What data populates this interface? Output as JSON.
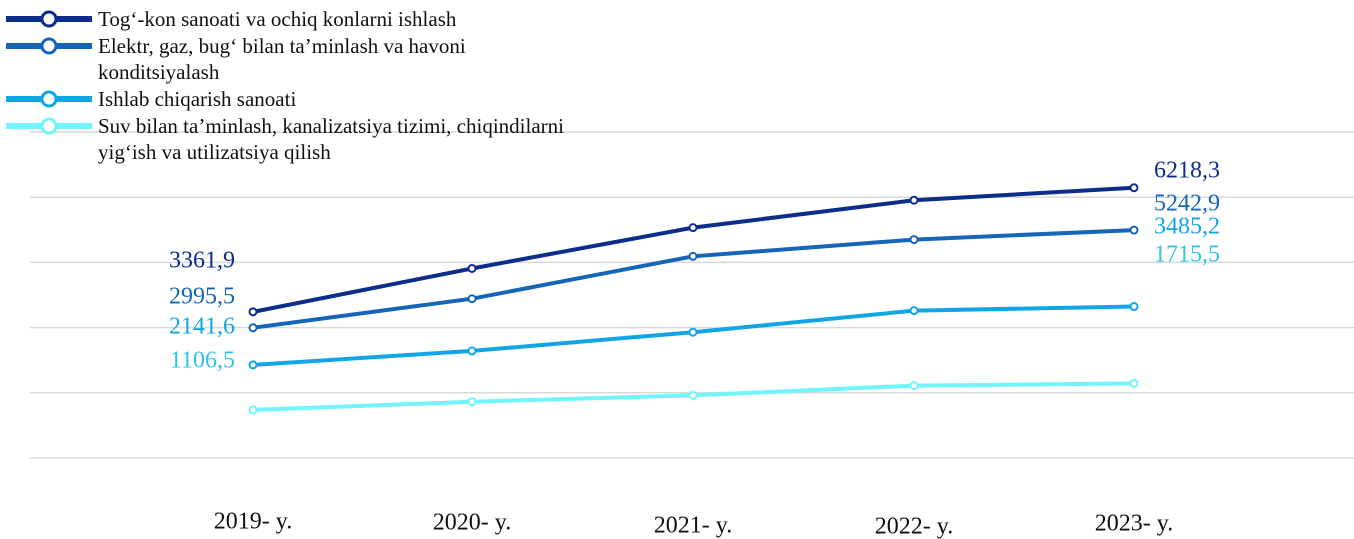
{
  "chart_data": {
    "type": "line",
    "categories": [
      "2019- y.",
      "2020- y.",
      "2021- y.",
      "2022- y.",
      "2023- y."
    ],
    "ylim": [
      0,
      7500
    ],
    "grid": true,
    "legend": "top-left",
    "series": [
      {
        "name": "Tog‘-kon sanoati va ochiq konlarni ishlash",
        "color": "#0d2d8a",
        "values": [
          3361.9,
          4360,
          5300,
          5930,
          6218.3
        ],
        "value_labels": [
          "3361,9",
          null,
          null,
          null,
          "6218,3"
        ]
      },
      {
        "name": "Elektr, gaz, bug‘ bilan ta’minlash va havoni konditsiyalash",
        "color": "#1565b8",
        "values": [
          2995.5,
          3665,
          4640,
          5025,
          5242.9
        ],
        "value_labels": [
          "2995,5",
          null,
          null,
          null,
          "5242,9"
        ]
      },
      {
        "name": "Ishlab chiqarish sanoati",
        "color": "#12a5e6",
        "values": [
          2141.6,
          2464,
          2894,
          3391,
          3485.2
        ],
        "value_labels": [
          "2141,6",
          null,
          null,
          null,
          "3485,2"
        ]
      },
      {
        "name": "Suv bilan ta’minlash, kanalizatsiya tizimi, chiqindilarni yig‘ish va utilizatsiya qilish",
        "color": "#6ff5fb",
        "values": [
          1106.5,
          1295,
          1441,
          1666,
          1715.5
        ],
        "value_labels": [
          "1106,5",
          null,
          null,
          null,
          "1715,5"
        ]
      }
    ]
  }
}
